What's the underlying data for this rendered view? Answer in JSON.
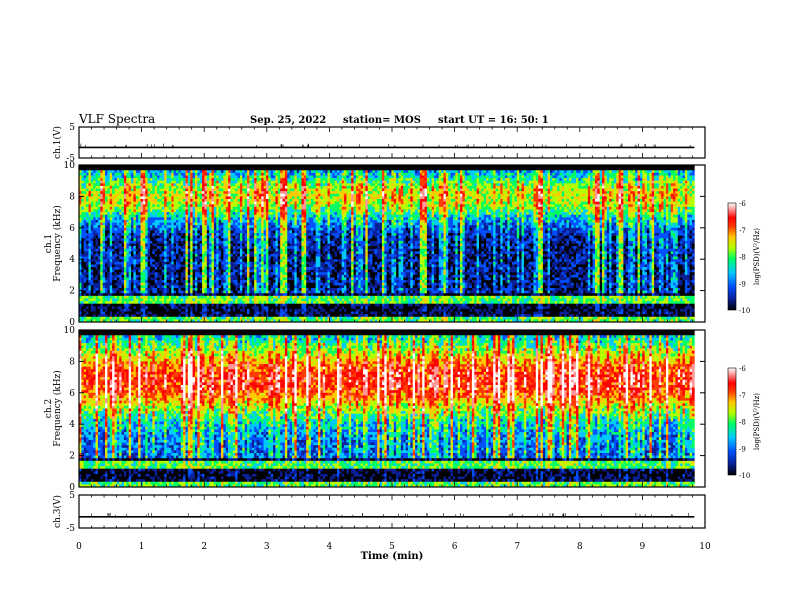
{
  "header": {
    "title": "VLF Spectra",
    "date": "Sep. 25, 2022",
    "station": "station= MOS",
    "start_ut": "start UT =  16: 50: 1"
  },
  "colors": {
    "colormap": [
      "#000000",
      "#0a1e96",
      "#0050ff",
      "#00c8ff",
      "#00ff64",
      "#b4ff00",
      "#ffc800",
      "#ff3c00",
      "#ff0000",
      "#ff9696",
      "#ffffff"
    ],
    "trace": "#000000",
    "axis": "#000000"
  },
  "chart_data": [
    {
      "type": "line",
      "ylabel": "ch.1(V)",
      "ylim": [
        -5,
        5
      ],
      "yticks": [
        "5",
        "-5"
      ],
      "xlim": [
        0,
        10
      ],
      "series": [
        {
          "values_constant": -1.6
        }
      ],
      "grid": false
    },
    {
      "type": "heatmap",
      "ylabel_lines": [
        "ch.1",
        "Frequency (kHz)"
      ],
      "ylim": [
        0,
        10
      ],
      "yticks": [
        "0",
        "2",
        "4",
        "6",
        "8",
        "10"
      ],
      "xlim": [
        0,
        10
      ],
      "data_extent_min": 9.83,
      "colorbar": {
        "label": "log(PSD)(V²/Hz)",
        "range": [
          -10,
          -6
        ],
        "ticks": [
          "-6",
          "-7",
          "-8",
          "-9",
          "-10"
        ]
      }
    },
    {
      "type": "heatmap",
      "ylabel_lines": [
        "ch.2",
        "Frequency (kHz)"
      ],
      "ylim": [
        0,
        10
      ],
      "yticks": [
        "0",
        "2",
        "4",
        "6",
        "8",
        "10"
      ],
      "xlim": [
        0,
        10
      ],
      "data_extent_min": 9.83,
      "colorbar": {
        "label": "log(PSD)(V²/Hz)",
        "range": [
          -10,
          -6
        ],
        "ticks": [
          "-6",
          "-7",
          "-8",
          "-9",
          "-10"
        ]
      }
    },
    {
      "type": "line",
      "ylabel": "ch.3(V)",
      "ylim": [
        -5,
        5
      ],
      "yticks": [
        "5",
        "-5"
      ],
      "xlim": [
        0,
        10
      ],
      "series": [
        {
          "values_constant": -1.6
        }
      ],
      "grid": false
    }
  ],
  "xaxis": {
    "label": "Time (min)",
    "ticks": [
      "0",
      "1",
      "2",
      "3",
      "4",
      "5",
      "6",
      "7",
      "8",
      "9",
      "10"
    ]
  }
}
